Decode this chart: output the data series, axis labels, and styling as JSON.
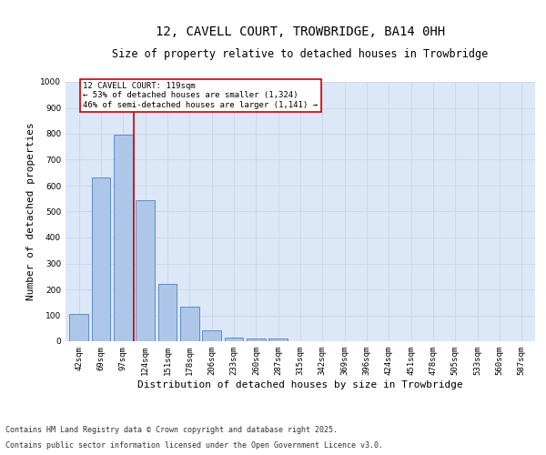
{
  "title": "12, CAVELL COURT, TROWBRIDGE, BA14 0HH",
  "subtitle": "Size of property relative to detached houses in Trowbridge",
  "xlabel": "Distribution of detached houses by size in Trowbridge",
  "ylabel": "Number of detached properties",
  "categories": [
    "42sqm",
    "69sqm",
    "97sqm",
    "124sqm",
    "151sqm",
    "178sqm",
    "206sqm",
    "233sqm",
    "260sqm",
    "287sqm",
    "315sqm",
    "342sqm",
    "369sqm",
    "396sqm",
    "424sqm",
    "451sqm",
    "478sqm",
    "505sqm",
    "533sqm",
    "560sqm",
    "587sqm"
  ],
  "values": [
    105,
    630,
    795,
    545,
    220,
    135,
    42,
    15,
    10,
    10,
    0,
    0,
    0,
    0,
    0,
    0,
    0,
    0,
    0,
    0,
    0
  ],
  "bar_color": "#aec6e8",
  "bar_edge_color": "#5b8cc8",
  "vline_x_index": 2.5,
  "vline_color": "#cc0000",
  "annotation_text": "12 CAVELL COURT: 119sqm\n← 53% of detached houses are smaller (1,324)\n46% of semi-detached houses are larger (1,141) →",
  "annotation_box_color": "#ffffff",
  "annotation_box_edge_color": "#cc0000",
  "ylim": [
    0,
    1000
  ],
  "yticks": [
    0,
    100,
    200,
    300,
    400,
    500,
    600,
    700,
    800,
    900,
    1000
  ],
  "grid_color": "#d0d8e8",
  "background_color": "#dce8f8",
  "footer_line1": "Contains HM Land Registry data © Crown copyright and database right 2025.",
  "footer_line2": "Contains public sector information licensed under the Open Government Licence v3.0.",
  "title_fontsize": 10,
  "subtitle_fontsize": 8.5,
  "tick_fontsize": 6.5,
  "ylabel_fontsize": 8,
  "xlabel_fontsize": 8,
  "footer_fontsize": 6,
  "annotation_fontsize": 6.5
}
